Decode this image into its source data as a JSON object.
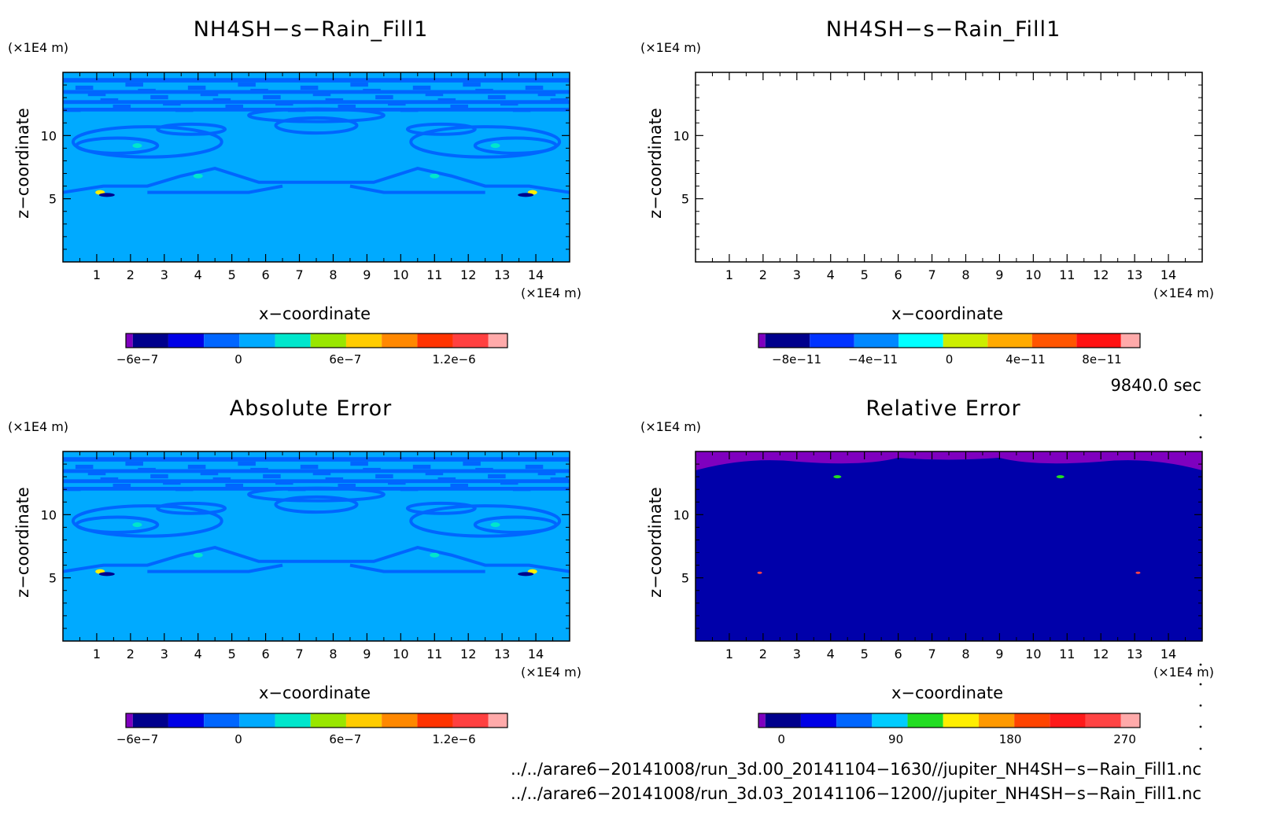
{
  "chart_data": [
    {
      "type": "heatmap",
      "title": "NH4SH−s−Rain_Fill1",
      "xlabel": "x−coordinate",
      "ylabel": "z−coordinate",
      "x_unit": "(×1E4 m)",
      "y_unit": "(×1E4 m)",
      "xlim": [
        0,
        15
      ],
      "ylim": [
        0,
        15
      ],
      "x_ticks": [
        "1",
        "2",
        "3",
        "4",
        "5",
        "6",
        "7",
        "8",
        "9",
        "10",
        "11",
        "12",
        "13",
        "14"
      ],
      "y_ticks": [
        "5",
        "10"
      ],
      "field": "model",
      "background_color": "#00aaff",
      "colorbar": {
        "colors": [
          "#7f00bf",
          "#00008c",
          "#0000e6",
          "#0066ff",
          "#00aaff",
          "#00e6cc",
          "#99e600",
          "#ffcc00",
          "#ff8800",
          "#ff3300",
          "#ff4040",
          "#ffaaaa"
        ],
        "tick_labels": [
          "−6e−7",
          "0",
          "6e−7",
          "1.2e−6"
        ]
      }
    },
    {
      "type": "heatmap",
      "title": "NH4SH−s−Rain_Fill1",
      "xlabel": "x−coordinate",
      "ylabel": "z−coordinate",
      "x_unit": "(×1E4 m)",
      "y_unit": "(×1E4 m)",
      "xlim": [
        0,
        15
      ],
      "ylim": [
        0,
        15
      ],
      "x_ticks": [
        "1",
        "2",
        "3",
        "4",
        "5",
        "6",
        "7",
        "8",
        "9",
        "10",
        "11",
        "12",
        "13",
        "14"
      ],
      "y_ticks": [
        "5",
        "10"
      ],
      "field": "empty",
      "background_color": "#ffffff",
      "colorbar": {
        "colors": [
          "#7f00bf",
          "#00008c",
          "#0033ff",
          "#0088ff",
          "#00ffff",
          "#ccee00",
          "#ffaa00",
          "#ff5500",
          "#ff1111",
          "#ffaaaa"
        ],
        "tick_labels": [
          "−8e−11",
          "−4e−11",
          "0",
          "4e−11",
          "8e−11"
        ]
      }
    },
    {
      "type": "heatmap",
      "title": "Absolute Error",
      "xlabel": "x−coordinate",
      "ylabel": "z−coordinate",
      "x_unit": "(×1E4 m)",
      "y_unit": "(×1E4 m)",
      "xlim": [
        0,
        15
      ],
      "ylim": [
        0,
        15
      ],
      "x_ticks": [
        "1",
        "2",
        "3",
        "4",
        "5",
        "6",
        "7",
        "8",
        "9",
        "10",
        "11",
        "12",
        "13",
        "14"
      ],
      "y_ticks": [
        "5",
        "10"
      ],
      "field": "model",
      "background_color": "#00aaff",
      "colorbar": {
        "colors": [
          "#7f00bf",
          "#00008c",
          "#0000e6",
          "#0066ff",
          "#00aaff",
          "#00e6cc",
          "#99e600",
          "#ffcc00",
          "#ff8800",
          "#ff3300",
          "#ff4040",
          "#ffaaaa"
        ],
        "tick_labels": [
          "−6e−7",
          "0",
          "6e−7",
          "1.2e−6"
        ]
      }
    },
    {
      "type": "heatmap",
      "title": "Relative Error",
      "xlabel": "x−coordinate",
      "ylabel": "z−coordinate",
      "x_unit": "(×1E4 m)",
      "y_unit": "(×1E4 m)",
      "xlim": [
        0,
        15
      ],
      "ylim": [
        0,
        15
      ],
      "x_ticks": [
        "1",
        "2",
        "3",
        "4",
        "5",
        "6",
        "7",
        "8",
        "9",
        "10",
        "11",
        "12",
        "13",
        "14"
      ],
      "y_ticks": [
        "5",
        "10"
      ],
      "field": "relative",
      "background_color": "#0000aa",
      "colorbar": {
        "colors": [
          "#7f00bf",
          "#00008c",
          "#0000e6",
          "#0066ff",
          "#00ccff",
          "#22dd22",
          "#ffee00",
          "#ff9900",
          "#ff4400",
          "#ff1a1a",
          "#ff4444",
          "#ffaaaa"
        ],
        "tick_labels": [
          "0",
          "90",
          "180",
          "270"
        ]
      }
    }
  ],
  "time_label": "9840.0 sec",
  "footer_lines": [
    "../../arare6−20141008/run_3d.00_20141104−1630//jupiter_NH4SH−s−Rain_Fill1.nc",
    "../../arare6−20141008/run_3d.03_20141106−1200//jupiter_NH4SH−s−Rain_Fill1.nc"
  ]
}
